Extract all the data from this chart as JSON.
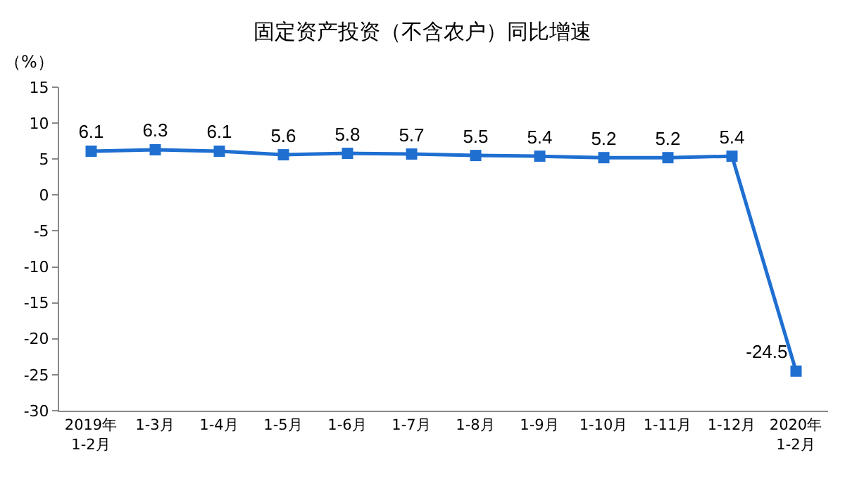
{
  "chart_data": {
    "type": "line",
    "title": "固定资产投资（不含农户）同比增速",
    "ylabel": "（%）",
    "categories": [
      "2019年\n1-2月",
      "1-3月",
      "1-4月",
      "1-5月",
      "1-6月",
      "1-7月",
      "1-8月",
      "1-9月",
      "1-10月",
      "1-11月",
      "1-12月",
      "2020年\n1-2月"
    ],
    "series": [
      {
        "color": "#1f6fd1",
        "values": [
          6.1,
          6.3,
          6.1,
          5.6,
          5.8,
          5.7,
          5.5,
          5.4,
          5.2,
          5.2,
          5.4,
          -24.5
        ]
      }
    ],
    "ylim": [
      -30,
      15
    ],
    "yticks": [
      -30,
      -25,
      -20,
      -15,
      -10,
      -5,
      0,
      5,
      10,
      15
    ],
    "grid": false,
    "marker": "square",
    "line_style": "solid",
    "data_labels": true
  }
}
